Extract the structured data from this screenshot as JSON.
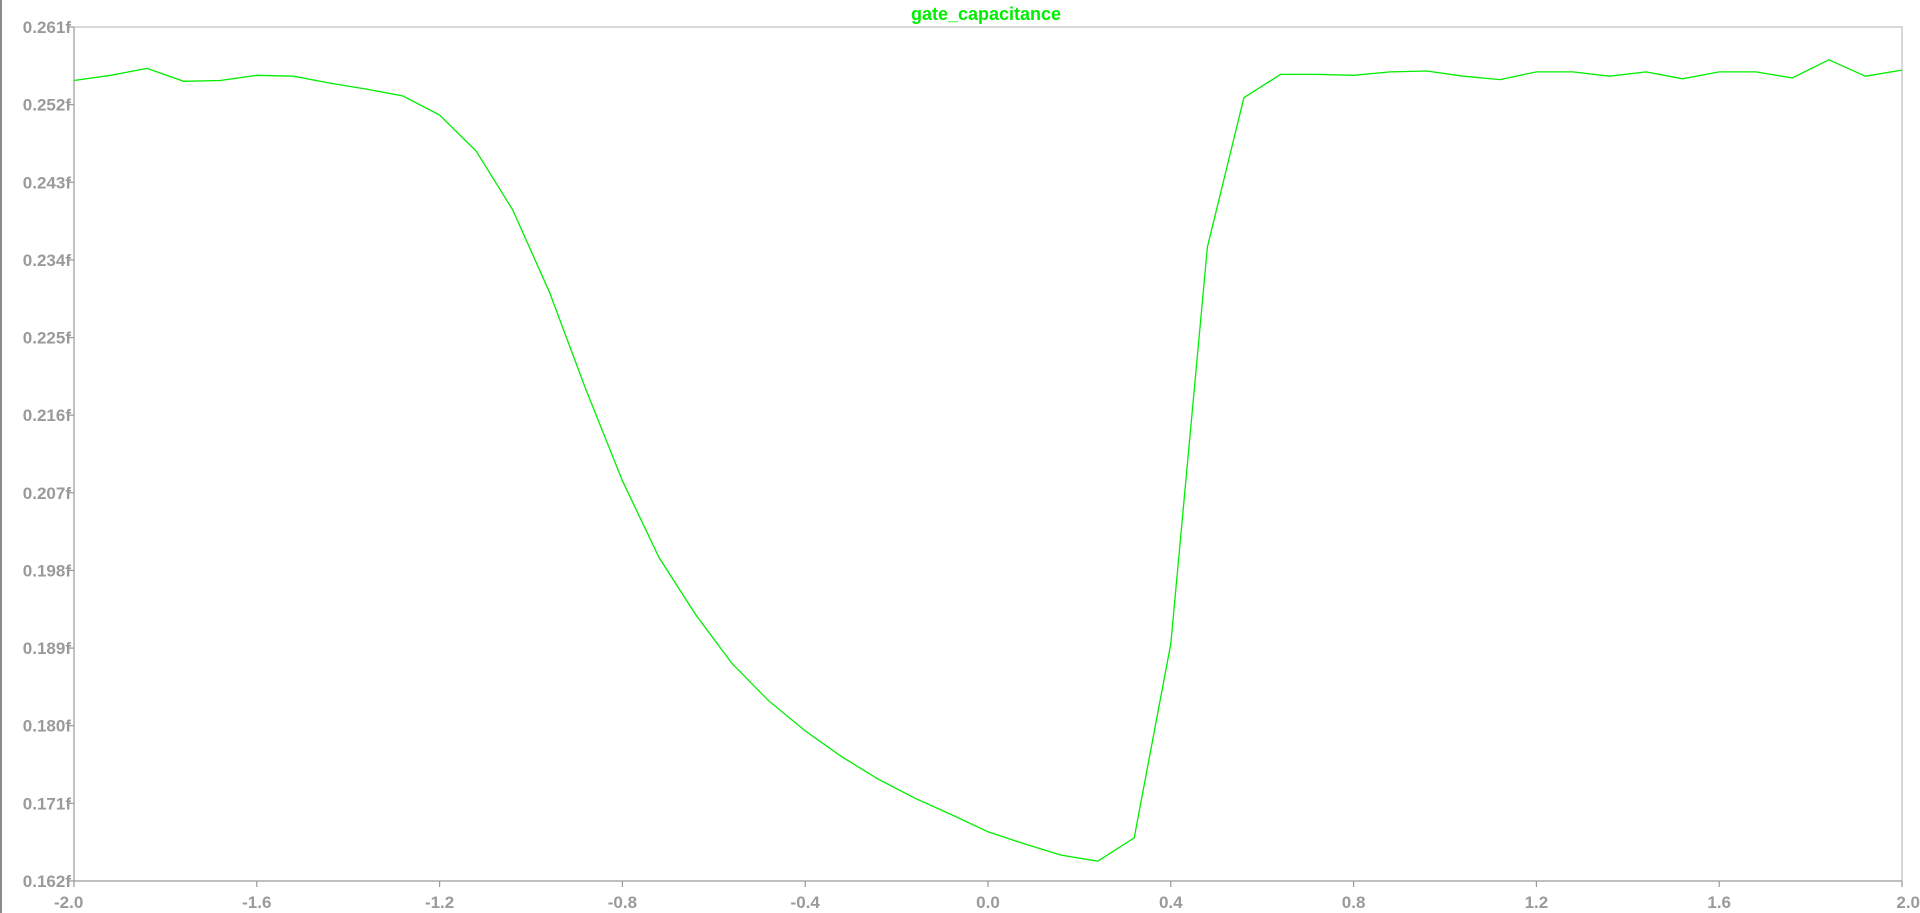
{
  "window": {
    "background": "#ffffff"
  },
  "chart_data": {
    "type": "line",
    "title": "gate_capacitance",
    "title_color": "#00ee00",
    "xlabel": "",
    "ylabel": "",
    "xlim": [
      -2.0,
      2.0
    ],
    "ylim": [
      0.162,
      0.261
    ],
    "grid": false,
    "x_ticks": [
      -2.0,
      -1.6,
      -1.2,
      -0.8,
      -0.4,
      0.0,
      0.4,
      0.8,
      1.2,
      1.6,
      2.0
    ],
    "x_tick_labels": [
      "-2.0",
      "-1.6",
      "-1.2",
      "-0.8",
      "-0.4",
      "0.0",
      "0.4",
      "0.8",
      "1.2",
      "1.6",
      "2.0"
    ],
    "y_ticks": [
      0.162,
      0.171,
      0.18,
      0.189,
      0.198,
      0.207,
      0.216,
      0.225,
      0.234,
      0.243,
      0.252,
      0.261
    ],
    "y_tick_labels": [
      "0.162f",
      "0.171f",
      "0.180f",
      "0.189f",
      "0.198f",
      "0.207f",
      "0.216f",
      "0.225f",
      "0.234f",
      "0.243f",
      "0.252f",
      "0.261f"
    ],
    "series": [
      {
        "color": "#00ee00",
        "x": [
          -2.0,
          -1.92,
          -1.84,
          -1.76,
          -1.68,
          -1.6,
          -1.52,
          -1.44,
          -1.36,
          -1.28,
          -1.2,
          -1.12,
          -1.04,
          -0.96,
          -0.88,
          -0.8,
          -0.72,
          -0.64,
          -0.56,
          -0.48,
          -0.4,
          -0.32,
          -0.24,
          -0.16,
          -0.08,
          0.0,
          0.08,
          0.16,
          0.24,
          0.32,
          0.4,
          0.48,
          0.56,
          0.64,
          0.72,
          0.8,
          0.88,
          0.96,
          1.04,
          1.12,
          1.2,
          1.28,
          1.36,
          1.44,
          1.52,
          1.6,
          1.68,
          1.76,
          1.84,
          1.92,
          2.0
        ],
        "y": [
          0.2548,
          0.2554,
          0.2562,
          0.2547,
          0.2548,
          0.2554,
          0.2553,
          0.2545,
          0.2538,
          0.253,
          0.2508,
          0.2466,
          0.2398,
          0.2303,
          0.219,
          0.2084,
          0.1995,
          0.1929,
          0.1872,
          0.1829,
          0.1794,
          0.1764,
          0.1738,
          0.1716,
          0.1697,
          0.1677,
          0.1663,
          0.165,
          0.1643,
          0.167,
          0.1895,
          0.2355,
          0.2528,
          0.2555,
          0.2555,
          0.2554,
          0.2558,
          0.2559,
          0.2553,
          0.2549,
          0.2558,
          0.2558,
          0.2553,
          0.2558,
          0.255,
          0.2558,
          0.2558,
          0.2551,
          0.2572,
          0.2553,
          0.256
        ]
      }
    ]
  }
}
